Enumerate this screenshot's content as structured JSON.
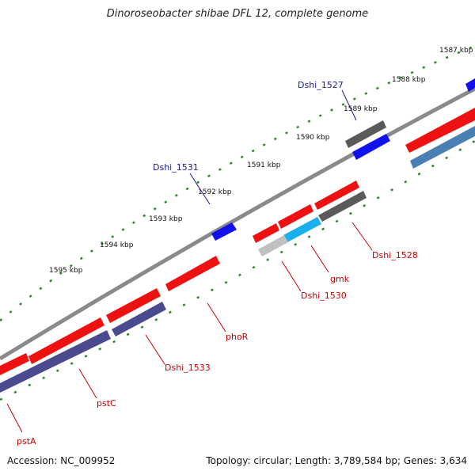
{
  "title": "Dinoroseobacter shibae DFL 12, complete genome",
  "footer": {
    "accession": "Accession: NC_009952",
    "topology": "Topology: circular; Length: 3,789,584 bp; Genes: 3,634"
  },
  "ticks": [
    "1587 kbp",
    "1588 kbp",
    "1589 kbp",
    "1590 kbp",
    "1591 kbp",
    "1592 kbp",
    "1593 kbp",
    "1594 kbp",
    "1595 kbp"
  ],
  "labels_top": [
    "Dshi_1527",
    "Dshi_1531"
  ],
  "labels_bottom": [
    "Dshi_1528",
    "gmk",
    "Dshi_1530",
    "phoR",
    "Dshi_1533",
    "pstC",
    "pstA"
  ],
  "colors": {
    "backbone": "#8a8a8a",
    "forward_gene": "#ee1111",
    "blue_gene": "#1111ee",
    "dark_gene": "#5a5a5a",
    "purple_gene": "#4a4a8e",
    "steelblue_gene": "#4a7fb3",
    "cyan_gene": "#1ab0ee",
    "lightgray_gene": "#c0c0c0",
    "tick_green": "#2a8a2a"
  }
}
